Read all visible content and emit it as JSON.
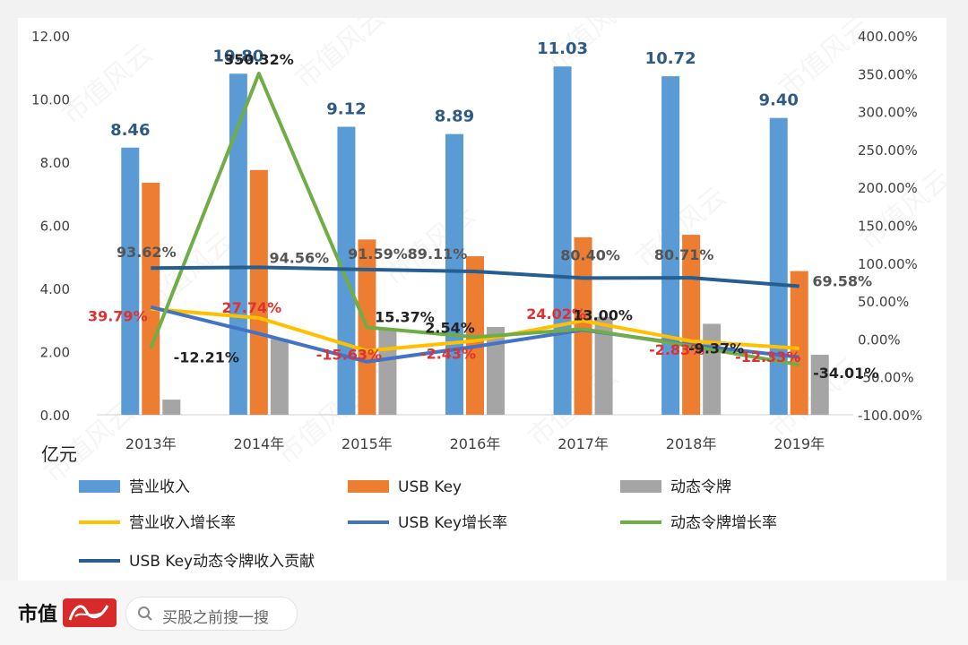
{
  "footer": {
    "brand": "市值",
    "brand_logo_icon": "fengyun-logo-icon",
    "search_icon": "search-icon",
    "search_placeholder": "买股之前搜一搜"
  },
  "watermark": "市值风云",
  "chart_data": {
    "type": "bar",
    "categories": [
      "2013年",
      "2014年",
      "2015年",
      "2016年",
      "2017年",
      "2018年",
      "2019年"
    ],
    "y_left": {
      "unit_label": "亿元",
      "range": [
        0,
        12
      ],
      "ticks": [
        "0.00",
        "2.00",
        "4.00",
        "6.00",
        "8.00",
        "10.00",
        "12.00"
      ]
    },
    "y_right": {
      "range": [
        -100,
        400
      ],
      "ticks": [
        "-100.00%",
        "-50.00%",
        "0.00%",
        "50.00%",
        "100.00%",
        "150.00%",
        "200.00%",
        "250.00%",
        "300.00%",
        "350.00%",
        "400.00%"
      ]
    },
    "grid": false,
    "legend_position": "bottom",
    "bar_series": [
      {
        "name": "营业收入",
        "color": "#5b9bd5",
        "values": [
          8.46,
          10.8,
          9.12,
          8.89,
          11.03,
          10.72,
          9.4
        ],
        "labels": [
          "8.46",
          "10.80",
          "9.12",
          "8.89",
          "11.03",
          "10.72",
          "9.40"
        ],
        "label_color": "#2e5a85"
      },
      {
        "name": "USB Key",
        "color": "#ed7d31",
        "values": [
          7.35,
          7.75,
          5.55,
          5.02,
          5.62,
          5.7,
          4.55
        ]
      },
      {
        "name": "动态令牌",
        "color": "#a5a5a5",
        "values": [
          0.48,
          2.4,
          2.7,
          2.78,
          3.1,
          2.88,
          1.9
        ]
      }
    ],
    "line_series": [
      {
        "name": "营业收入增长率",
        "color": "#ffc000",
        "values": [
          39.79,
          27.74,
          -15.63,
          -2.43,
          24.02,
          -2.83,
          -12.33
        ],
        "labels": [
          "39.79%",
          "27.74%",
          "-15.63%",
          "-2.43%",
          "24.02%",
          "-2.83%",
          "-12.33%"
        ],
        "label_color": "#e03030"
      },
      {
        "name": "USB Key增长率",
        "color": "#4472c4",
        "values": [
          42,
          7,
          -30,
          -10,
          12,
          -8,
          -24
        ]
      },
      {
        "name": "动态令牌增长率",
        "color": "#70ad47",
        "values": [
          -12.21,
          350.32,
          15.37,
          2.54,
          13.0,
          -9.37,
          -34.01
        ],
        "labels": [
          "-12.21%",
          "350.32%",
          "15.37%",
          "2.54%",
          "13.00%",
          "-9.37%",
          "-34.01%"
        ],
        "label_color": "#222222"
      },
      {
        "name": "USB Key动态令牌收入贡献",
        "color": "#255e91",
        "values": [
          93.62,
          94.56,
          91.59,
          89.11,
          80.4,
          80.71,
          69.58
        ],
        "labels": [
          "93.62%",
          "94.56%",
          "91.59%",
          "89.11%",
          "80.40%",
          "80.71%",
          "69.58%"
        ],
        "label_color": "#555555"
      }
    ]
  }
}
